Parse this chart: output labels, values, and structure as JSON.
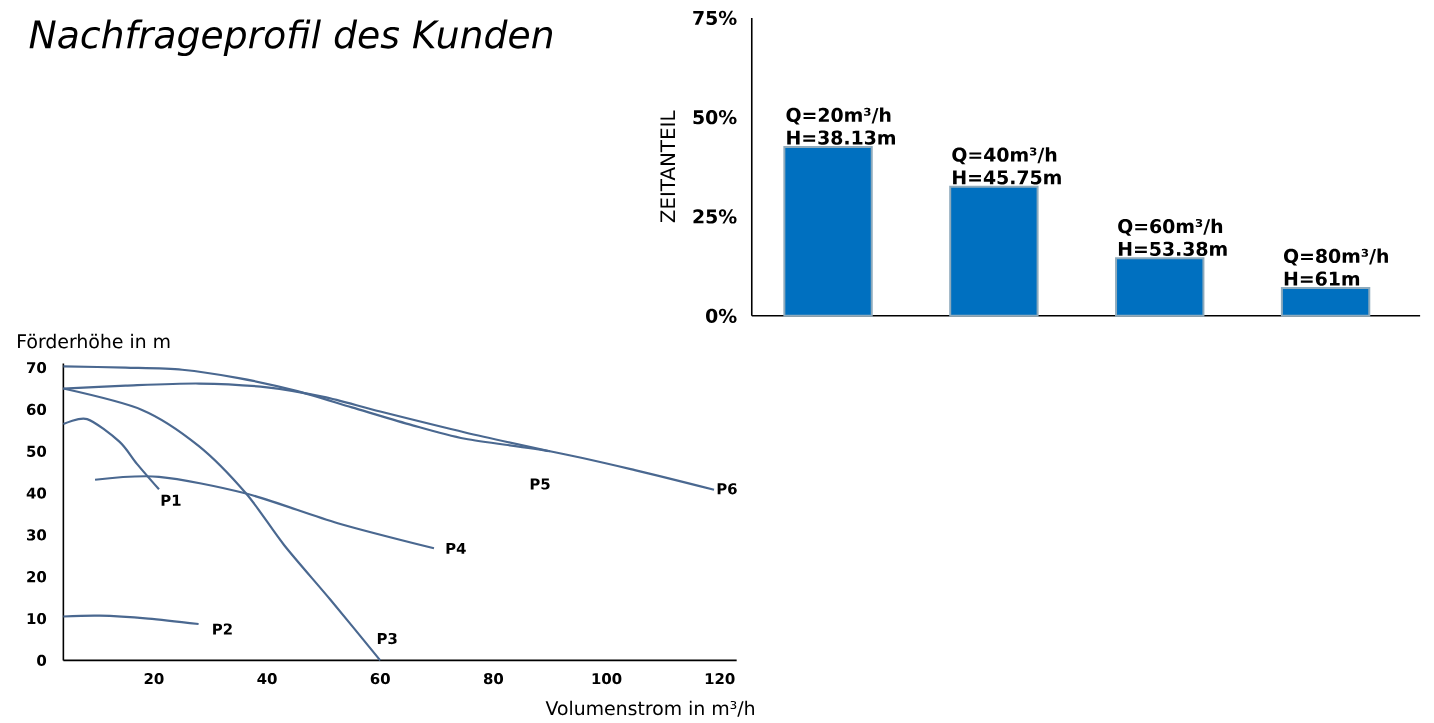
{
  "chart_data": [
    {
      "type": "bar",
      "title": "Nachfrageprofil des Kunden",
      "ylabel": "ZEITANTEIL",
      "categories": [
        null,
        null,
        null,
        null
      ],
      "values": [
        42.5,
        32.5,
        14.5,
        7
      ],
      "value_labels": [
        "Q=20m³/h H=38.13m",
        "Q=40m³/h H=45.75m",
        "Q=60m³/h H=53.38m",
        "Q=80m³/h H=61m"
      ],
      "color": "#0070c0",
      "ylim": [
        0,
        75
      ],
      "yticks": [
        {
          "value": 0,
          "label": "0%"
        },
        {
          "value": 25,
          "label": "25%"
        },
        {
          "value": 50,
          "label": "50%"
        },
        {
          "value": 75,
          "label": "75%"
        }
      ]
    },
    {
      "type": "line",
      "xlabel": "Volumenstrom in m³/h",
      "ylabel": "Förderhöhe in m",
      "series": [
        {
          "name": "P1",
          "color": "#4a6890",
          "x": [
            4,
            8.2,
            13.9,
            17,
            20.9
          ],
          "values": [
            56.5,
            57.7,
            52.3,
            47,
            40.9
          ]
        },
        {
          "name": "P2",
          "color": "#4a6890",
          "x": [
            4,
            10.4,
            19,
            27.9
          ],
          "values": [
            10.5,
            10.7,
            10,
            8.7
          ]
        },
        {
          "name": "P3",
          "color": "#4a6890",
          "x": [
            4,
            17.9,
            27.9,
            36.3,
            43,
            51.2,
            60
          ],
          "values": [
            65,
            59.9,
            51.3,
            39.9,
            27.6,
            14.5,
            0
          ]
        },
        {
          "name": "P4",
          "color": "#4a6890",
          "x": [
            9.6,
            20.9,
            36.3,
            52.5,
            69.5
          ],
          "values": [
            43.2,
            43.9,
            39.9,
            32.8,
            26.8
          ]
        },
        {
          "name": "P5",
          "color": "#4a6890",
          "x": [
            4,
            15,
            28,
            40,
            50,
            60,
            75,
            90
          ],
          "values": [
            65,
            65.7,
            66.2,
            65.3,
            63,
            59.5,
            54.5,
            50
          ]
        },
        {
          "name": "P6",
          "color": "#4a6890",
          "x": [
            4,
            15,
            25,
            35,
            45,
            55,
            65,
            75,
            90,
            105,
            119
          ],
          "values": [
            70.3,
            70,
            69.5,
            67.5,
            64.5,
            60.5,
            56.5,
            53,
            50,
            45.5,
            40.8
          ]
        }
      ],
      "xlim": [
        4,
        123
      ],
      "ylim": [
        0,
        71
      ],
      "xticks": [
        20,
        40,
        60,
        80,
        100,
        120
      ],
      "yticks": [
        0,
        10,
        20,
        30,
        40,
        50,
        60,
        70
      ]
    }
  ]
}
